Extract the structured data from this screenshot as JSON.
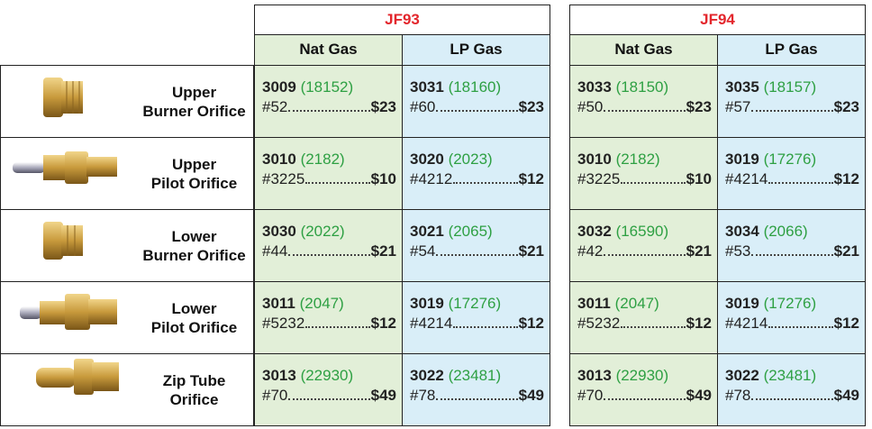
{
  "groups": [
    {
      "title": "JF93",
      "columns": [
        "Nat Gas",
        "LP Gas"
      ]
    },
    {
      "title": "JF94",
      "columns": [
        "Nat Gas",
        "LP Gas"
      ]
    }
  ],
  "rows": [
    {
      "label": [
        "Upper",
        "Burner Orifice"
      ],
      "cells": [
        {
          "code": "3009",
          "ref": "(18152)",
          "size": "#52",
          "price": "$23"
        },
        {
          "code": "3031",
          "ref": "(18160)",
          "size": "#60",
          "price": "$23"
        },
        {
          "code": "3033",
          "ref": "(18150)",
          "size": "#50",
          "price": "$23"
        },
        {
          "code": "3035",
          "ref": "(18157)",
          "size": "#57",
          "price": "$23"
        }
      ]
    },
    {
      "label": [
        "Upper",
        "Pilot Orifice"
      ],
      "cells": [
        {
          "code": "3010",
          "ref": "(2182)",
          "size": "#3225",
          "price": "$10"
        },
        {
          "code": "3020",
          "ref": "(2023)",
          "size": "#4212",
          "price": "$12"
        },
        {
          "code": "3010",
          "ref": "(2182)",
          "size": "#3225",
          "price": "$10"
        },
        {
          "code": "3019",
          "ref": "(17276)",
          "size": "#4214",
          "price": "$12"
        }
      ]
    },
    {
      "label": [
        "Lower",
        "Burner Orifice"
      ],
      "cells": [
        {
          "code": "3030",
          "ref": "(2022)",
          "size": "#44",
          "price": "$21"
        },
        {
          "code": "3021",
          "ref": "(2065)",
          "size": "#54",
          "price": "$21"
        },
        {
          "code": "3032",
          "ref": "(16590)",
          "size": "#42",
          "price": "$21"
        },
        {
          "code": "3034",
          "ref": "(2066)",
          "size": "#53",
          "price": "$21"
        }
      ]
    },
    {
      "label": [
        "Lower",
        "Pilot Orifice"
      ],
      "cells": [
        {
          "code": "3011",
          "ref": "(2047)",
          "size": "#5232",
          "price": "$12"
        },
        {
          "code": "3019",
          "ref": "(17276)",
          "size": "#4214",
          "price": "$12"
        },
        {
          "code": "3011",
          "ref": "(2047)",
          "size": "#5232",
          "price": "$12"
        },
        {
          "code": "3019",
          "ref": "(17276)",
          "size": "#4214",
          "price": "$12"
        }
      ]
    },
    {
      "label": [
        "Zip Tube",
        "Orifice"
      ],
      "cells": [
        {
          "code": "3013",
          "ref": "(22930)",
          "size": "#70",
          "price": "$49"
        },
        {
          "code": "3022",
          "ref": "(23481)",
          "size": "#78",
          "price": "$49"
        },
        {
          "code": "3013",
          "ref": "(22930)",
          "size": "#70",
          "price": "$49"
        },
        {
          "code": "3022",
          "ref": "(23481)",
          "size": "#78",
          "price": "$49"
        }
      ]
    }
  ]
}
